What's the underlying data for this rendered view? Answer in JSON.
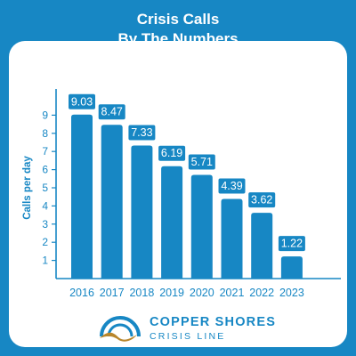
{
  "header": {
    "title_line1": "Crisis Calls",
    "title_line2": "By The Numbers"
  },
  "brand": {
    "name": "COPPER SHORES",
    "subtitle": "CRISIS LINE"
  },
  "colors": {
    "background": "#1787c4",
    "bar": "#1787c4",
    "panel": "#ffffff",
    "wave": "#b8862c"
  },
  "icons": [
    "copper-shores-logo-icon"
  ],
  "chart_data": {
    "type": "bar",
    "title": "Crisis Calls By The Numbers",
    "xlabel": "",
    "ylabel": "Calls per day",
    "categories": [
      "2016",
      "2017",
      "2018",
      "2019",
      "2020",
      "2021",
      "2022",
      "2023"
    ],
    "values": [
      9.03,
      8.47,
      7.33,
      6.19,
      5.71,
      4.39,
      3.62,
      1.22
    ],
    "data_labels": [
      "9.03",
      "8.47",
      "7.33",
      "6.19",
      "5.71",
      "4.39",
      "3.62",
      "1.22"
    ],
    "yticks": [
      "1",
      "2",
      "3",
      "4",
      "5",
      "6",
      "7",
      "8",
      "9"
    ],
    "ylim": [
      0,
      10
    ],
    "grid": false,
    "legend": "none"
  }
}
